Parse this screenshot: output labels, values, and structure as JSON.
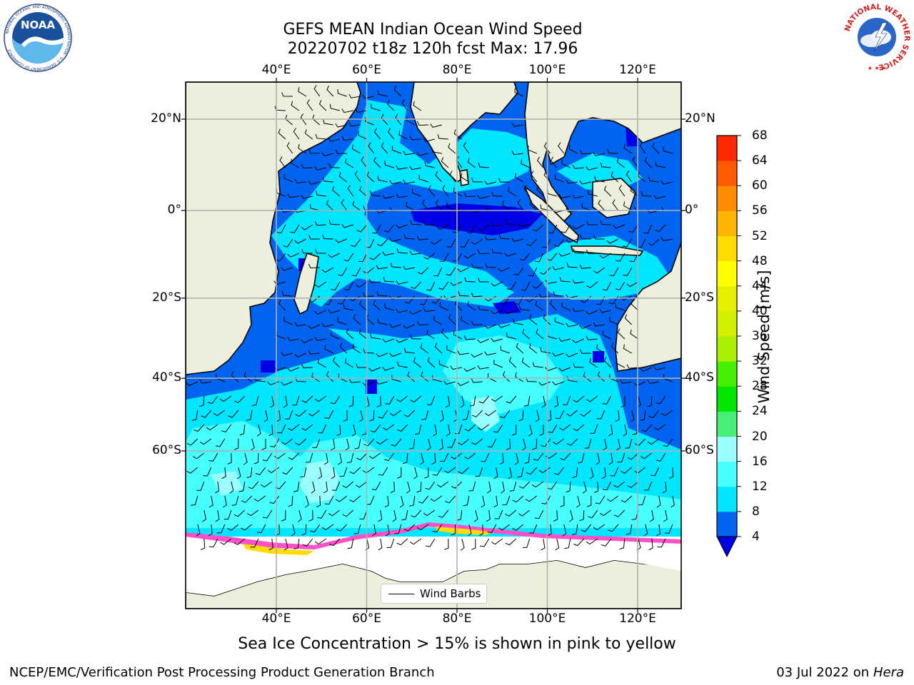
{
  "header": {
    "title_line1": "GEFS MEAN Indian Ocean Wind Speed",
    "title_line2": "20220702 t18z 120h fcst   Max: 17.96"
  },
  "logos": {
    "noaa_text": "NOAA",
    "noaa_ring": "NATIONAL OCEANIC AND ATMOSPHERIC ADMINISTRATION · U.S. DEPARTMENT OF COMMERCE",
    "nws_ring": "NATIONAL WEATHER SERVICE"
  },
  "axes": {
    "lon_labels": [
      "40°E",
      "60°E",
      "80°E",
      "100°E",
      "120°E"
    ],
    "lat_labels": [
      "20°N",
      "0°",
      "20°S",
      "40°S",
      "60°S"
    ],
    "lon_values": [
      40,
      60,
      80,
      100,
      120
    ],
    "lat_values": [
      20,
      0,
      -20,
      -40,
      -60
    ]
  },
  "legend": {
    "label": "Wind Barbs"
  },
  "colorbar": {
    "title": "Wind Speed [m/s]",
    "ticks": [
      "4",
      "8",
      "12",
      "16",
      "20",
      "24",
      "28",
      "32",
      "36",
      "40",
      "44",
      "48",
      "52",
      "56",
      "60",
      "64",
      "68"
    ],
    "colors": [
      "#0064f0",
      "#00e6ff",
      "#46ffff",
      "#9bffff",
      "#46f078",
      "#00e600",
      "#46f000",
      "#aaf000",
      "#d2f000",
      "#e6f000",
      "#ffff00",
      "#ffdc00",
      "#ffb400",
      "#ff8c00",
      "#ff5a00",
      "#ff2800",
      "#ff0000"
    ],
    "under_color": "#0000e6"
  },
  "footer": {
    "sea_ice_note": "Sea Ice Concentration > 15% is shown in pink to yellow",
    "credit": "NCEP/EMC/Verification Post Processing Product Generation Branch",
    "date": "03 Jul 2022 on ",
    "machine": "Hera"
  },
  "colors": {
    "land": "#eeeedd",
    "ocean_low": "#0000e6",
    "ocean_4_8": "#0064f0",
    "ocean_8_12": "#00e6ff",
    "ocean_12_16": "#46ffff",
    "ocean_16_20": "#9bffff",
    "ice_pink": "#ff50c8",
    "ice_yellow": "#ffdc00"
  }
}
